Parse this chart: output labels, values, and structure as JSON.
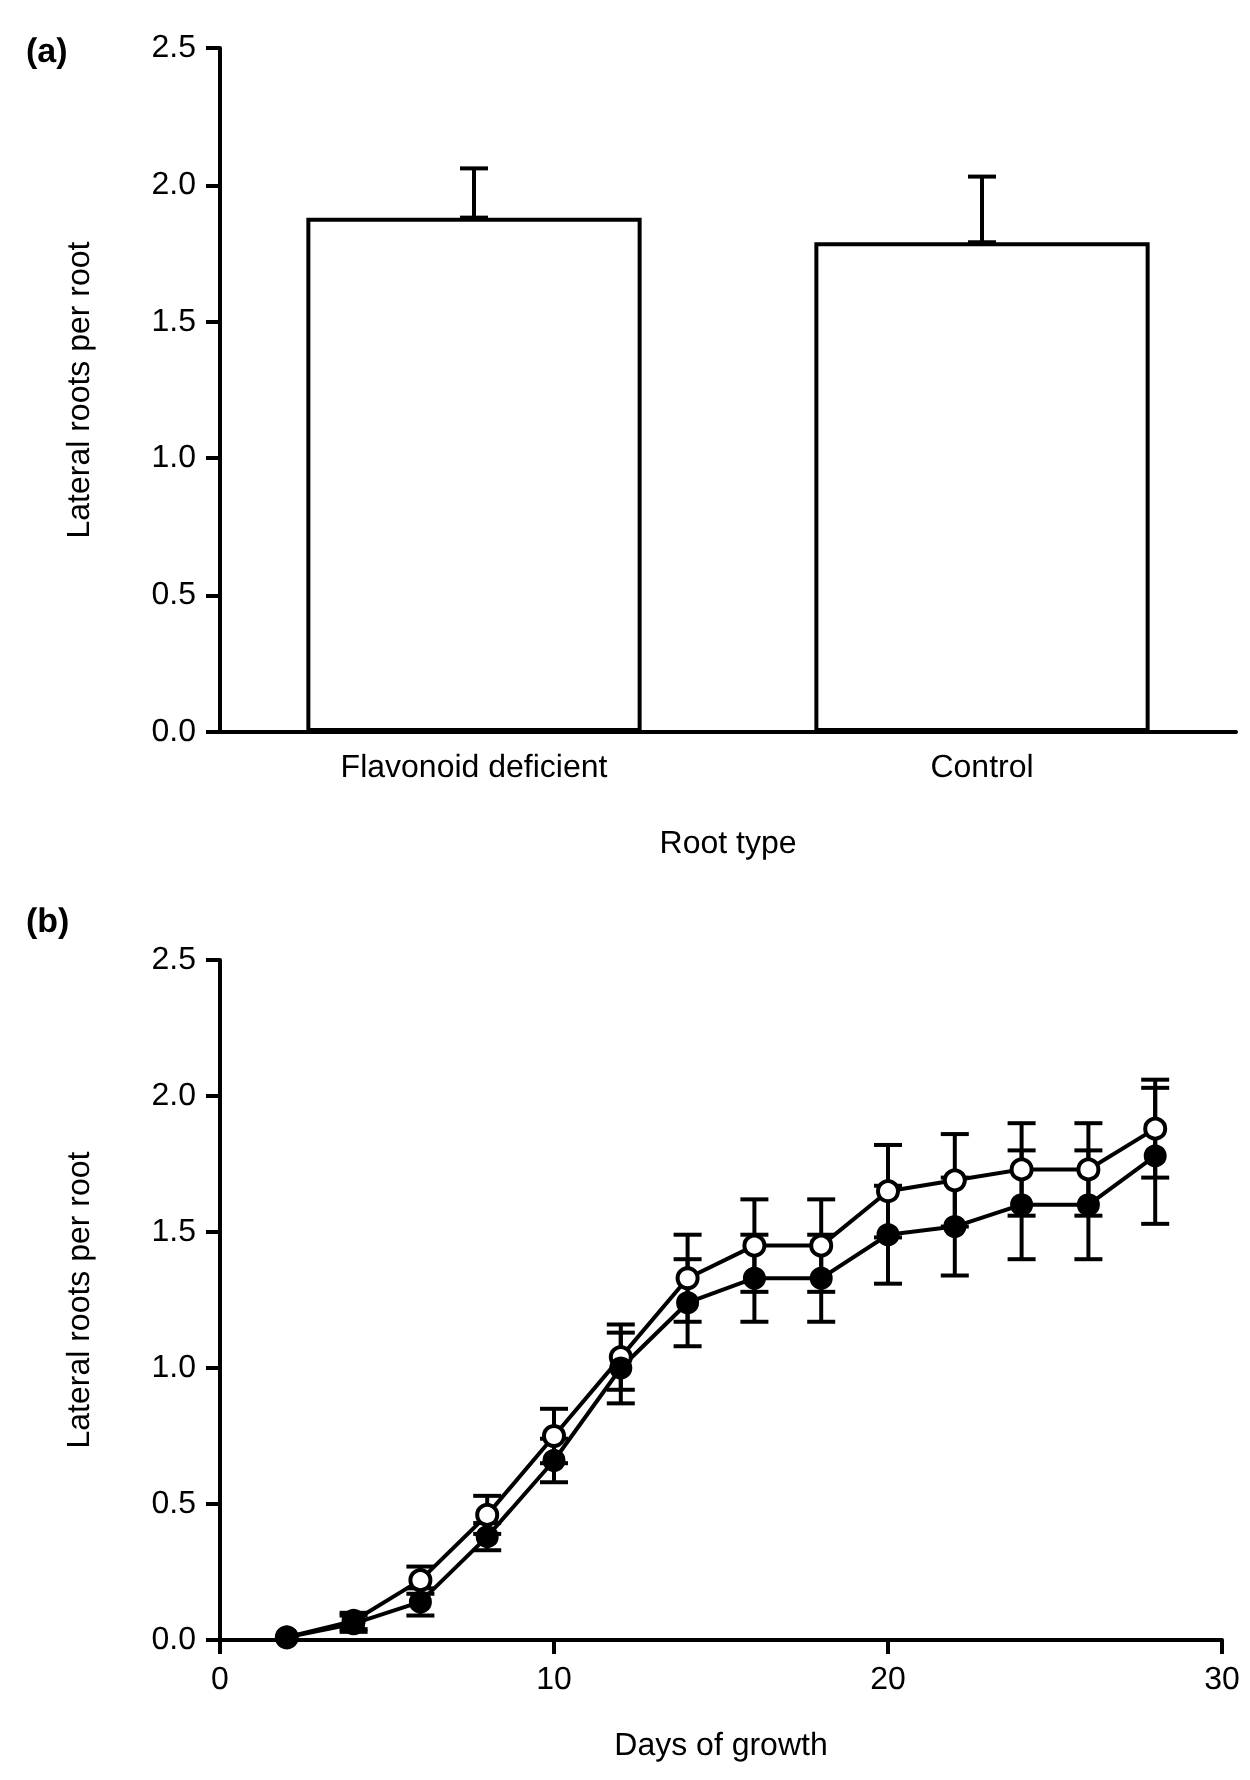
{
  "chart_data": [
    {
      "type": "bar",
      "title": "(a)",
      "xlabel": "Root type",
      "ylabel": "Lateral roots per root",
      "categories": [
        "Flavonoid deficient",
        "Control"
      ],
      "series": [
        {
          "color": "#ffffff",
          "values": [
            1.88,
            1.79
          ],
          "errors": [
            [
              1.88,
              2.06
            ],
            [
              1.79,
              2.03
            ]
          ]
        }
      ],
      "ylim": [
        0,
        2.5
      ],
      "yticks": [
        {
          "value": 0,
          "label": "0.0"
        },
        0.5,
        {
          "value": 1,
          "label": "1.0"
        },
        1.5,
        {
          "value": 2,
          "label": "2.0"
        },
        2.5
      ]
    },
    {
      "type": "line",
      "title": "(b)",
      "xlabel": "Days of growth",
      "ylabel": "Lateral roots per root",
      "x": [
        2,
        4,
        6,
        8,
        10,
        12,
        14,
        16,
        18,
        20,
        22,
        24,
        26,
        28
      ],
      "series": [
        {
          "color": "#000000",
          "values": [
            0.01,
            0.07,
            0.22,
            0.46,
            0.75,
            1.04,
            1.33,
            1.45,
            1.45,
            1.65,
            1.69,
            1.73,
            1.73,
            1.88
          ],
          "errors": [
            null,
            0.03,
            0.05,
            0.07,
            0.1,
            0.12,
            0.16,
            0.17,
            0.17,
            0.17,
            0.17,
            0.17,
            0.17,
            0.18
          ]
        },
        {
          "color": "#000000",
          "values": [
            0.01,
            0.06,
            0.14,
            0.38,
            0.66,
            1.0,
            1.24,
            1.33,
            1.33,
            1.49,
            1.52,
            1.6,
            1.6,
            1.78
          ],
          "errors": [
            null,
            0.03,
            0.05,
            0.05,
            0.08,
            0.13,
            0.16,
            0.16,
            0.16,
            0.18,
            0.18,
            0.2,
            0.2,
            0.25
          ]
        }
      ],
      "xlim": [
        0,
        30
      ],
      "xticks": [
        0,
        10,
        20,
        30
      ],
      "ylim": [
        0,
        2.5
      ],
      "yticks": [
        {
          "value": 0,
          "label": "0.0"
        },
        0.5,
        {
          "value": 1,
          "label": "1.0"
        },
        1.5,
        {
          "value": 2,
          "label": "2.0"
        },
        2.5
      ],
      "marker": "circle",
      "line_style": "solid"
    }
  ]
}
